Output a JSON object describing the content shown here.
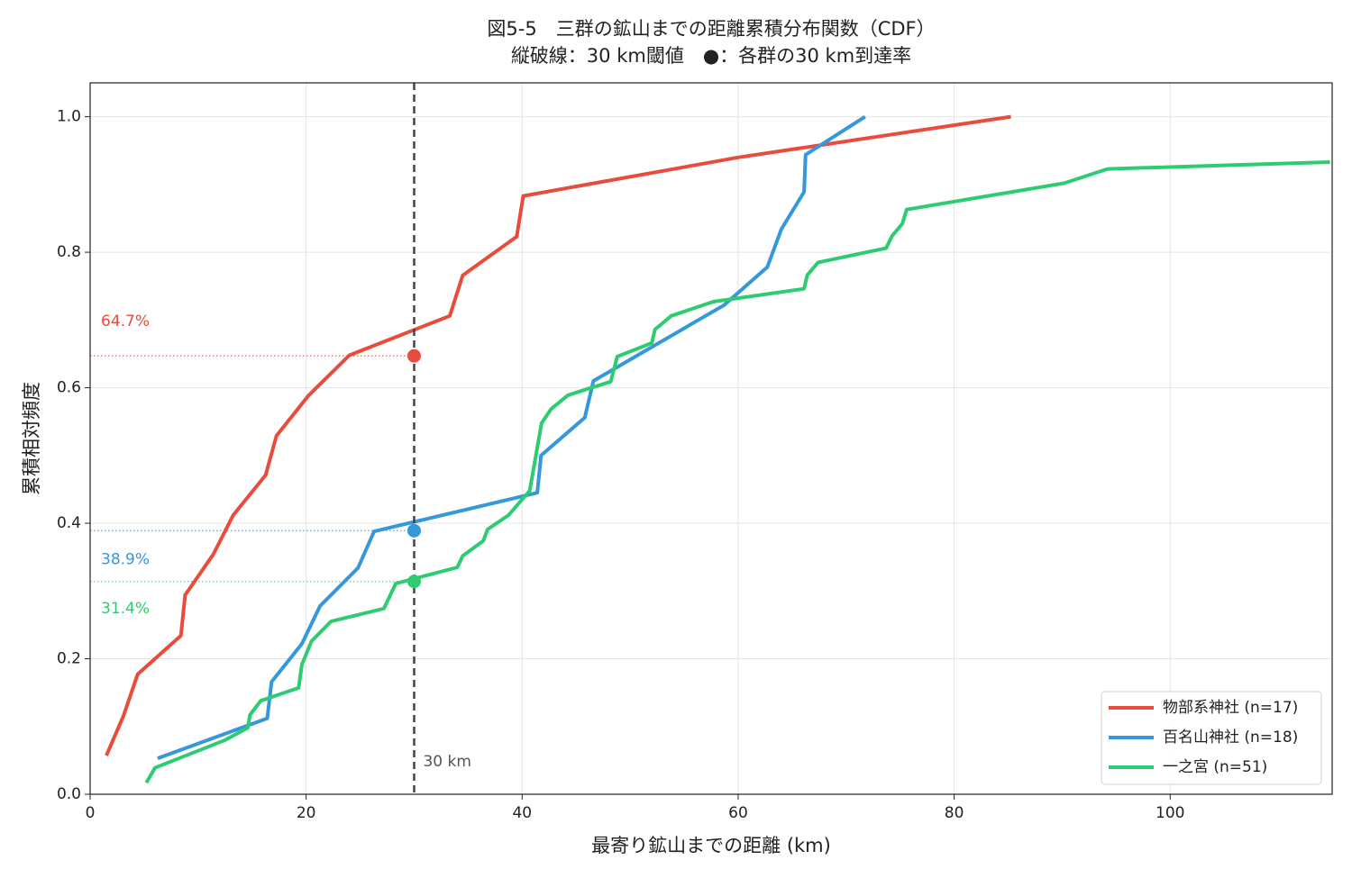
{
  "chart_data": {
    "type": "line",
    "title": "図5-5　三群の鉱山までの距離累積分布関数（CDF）",
    "subtitle": "縦破線：30 km閾値　●：各群の30 km到達率",
    "x_label": "最寄り鉱山までの距離 (km)",
    "y_label": "累積相対頻度",
    "xlim": [
      0,
      115
    ],
    "ylim": [
      0,
      1.05
    ],
    "xticks": [
      0,
      20,
      40,
      60,
      80,
      100
    ],
    "yticks": [
      {
        "value": 0,
        "label": "0.0"
      },
      {
        "value": 0.2,
        "label": "0.2"
      },
      {
        "value": 0.4,
        "label": "0.4"
      },
      {
        "value": 0.6,
        "label": "0.6"
      },
      {
        "value": 0.8,
        "label": "0.8"
      },
      {
        "value": 1.0,
        "label": "1.0"
      }
    ],
    "grid": true,
    "legend": "lower right",
    "threshold": {
      "value": 30,
      "label": "30 km"
    },
    "series": [
      {
        "name": "物部系神社 (n=17)",
        "color": "#e74c3c",
        "x": [
          1.5,
          3.1,
          4.4,
          8.4,
          8.8,
          11.4,
          13.25,
          16.25,
          17.25,
          20.2,
          24,
          33.3,
          34.5,
          39.5,
          40.1,
          60,
          85.25
        ],
        "values": [
          0.057,
          0.116,
          0.177,
          0.234,
          0.294,
          0.354,
          0.412,
          0.471,
          0.529,
          0.588,
          0.648,
          0.706,
          0.766,
          0.823,
          0.883,
          0.94,
          1.0
        ],
        "at_threshold": 0.647,
        "at_threshold_label": "64.7%"
      },
      {
        "name": "百名山神社 (n=18)",
        "color": "#3498db",
        "x": [
          6.25,
          16.4,
          16.8,
          19.6,
          21.3,
          24.8,
          26.3,
          41.4,
          41.75,
          45.8,
          46.6,
          58.7,
          62.7,
          64,
          66.1,
          66.25,
          71.75
        ],
        "values": [
          0.053,
          0.112,
          0.166,
          0.222,
          0.278,
          0.334,
          0.388,
          0.445,
          0.5,
          0.556,
          0.61,
          0.722,
          0.778,
          0.834,
          0.889,
          0.944,
          1.0
        ],
        "at_threshold": 0.389,
        "at_threshold_label": "38.9%"
      },
      {
        "name": "一之宮 (n=51)",
        "color": "#2ecc71",
        "x": [
          5.2,
          6,
          12.5,
          14.6,
          14.8,
          15.8,
          19.3,
          19.6,
          20.5,
          22.3,
          27.2,
          28.3,
          34,
          34.5,
          36.4,
          36.8,
          38.75,
          40.7,
          41.8,
          42.7,
          44.25,
          48.2,
          48.8,
          52,
          52.3,
          53.8,
          57.7,
          66.1,
          66.4,
          67.4,
          73.7,
          74.25,
          75.2,
          75.6,
          90.2,
          94.2,
          114.8
        ],
        "values": [
          0.017,
          0.039,
          0.08,
          0.098,
          0.117,
          0.138,
          0.157,
          0.191,
          0.226,
          0.255,
          0.274,
          0.311,
          0.335,
          0.352,
          0.374,
          0.391,
          0.412,
          0.448,
          0.548,
          0.569,
          0.589,
          0.609,
          0.646,
          0.666,
          0.686,
          0.706,
          0.727,
          0.746,
          0.766,
          0.785,
          0.806,
          0.824,
          0.842,
          0.863,
          0.902,
          0.923,
          0.933
        ],
        "at_threshold": 0.314,
        "at_threshold_label": "31.4%"
      }
    ]
  }
}
